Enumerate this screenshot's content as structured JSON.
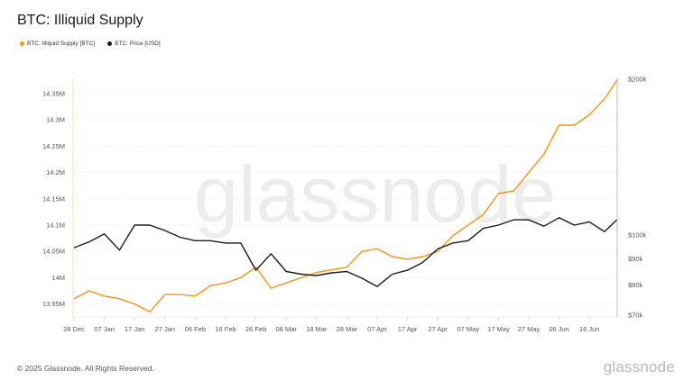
{
  "header": {
    "title": "BTC: Illiquid Supply"
  },
  "legend": [
    {
      "label": "BTC: Illiquid Supply [BTC]",
      "color": "#F7931A"
    },
    {
      "label": "BTC: Price [USD]",
      "color": "#1a1a1a"
    }
  ],
  "watermark": "glassnode",
  "footer": {
    "copyright": "© 2025 Glassnode. All Rights Reserved.",
    "brand": "glassnode"
  },
  "chart_data": {
    "type": "line",
    "title": "BTC: Illiquid Supply",
    "xlabel": "",
    "ylabel_left": "Illiquid Supply [BTC]",
    "ylabel_right": "Price [USD]",
    "x_ticks": [
      "28 Dec",
      "07 Jan",
      "17 Jan",
      "27 Jan",
      "06 Feb",
      "16 Feb",
      "26 Feb",
      "08 Mar",
      "18 Mar",
      "28 Mar",
      "07 Apr",
      "17 Apr",
      "27 Apr",
      "07 May",
      "17 May",
      "27 May",
      "06 Jun",
      "16 Jun"
    ],
    "y_left_ticks": [
      "13.95M",
      "14M",
      "14.05M",
      "14.1M",
      "14.15M",
      "14.2M",
      "14.25M",
      "14.3M",
      "14.35M"
    ],
    "y_left_range": [
      13.94,
      14.375
    ],
    "y_right_ticks": [
      "$70k",
      "$80k",
      "$90k",
      "$100k",
      "$200k"
    ],
    "y_right_scale": "log",
    "y_right_range": [
      70000,
      200000
    ],
    "grid": true,
    "legend_position": "top-left",
    "x": [
      "28 Dec",
      "02 Jan",
      "07 Jan",
      "12 Jan",
      "17 Jan",
      "22 Jan",
      "27 Jan",
      "01 Feb",
      "06 Feb",
      "11 Feb",
      "16 Feb",
      "21 Feb",
      "26 Feb",
      "03 Mar",
      "08 Mar",
      "13 Mar",
      "18 Mar",
      "23 Mar",
      "28 Mar",
      "02 Apr",
      "07 Apr",
      "12 Apr",
      "17 Apr",
      "22 Apr",
      "27 Apr",
      "02 May",
      "07 May",
      "12 May",
      "17 May",
      "22 May",
      "27 May",
      "01 Jun",
      "06 Jun",
      "11 Jun",
      "16 Jun",
      "21 Jun",
      "25 Jun"
    ],
    "series": [
      {
        "name": "BTC: Illiquid Supply [BTC]",
        "axis": "left",
        "color": "#F7931A",
        "values": [
          13.96,
          13.975,
          13.965,
          13.96,
          13.95,
          13.935,
          13.968,
          13.968,
          13.965,
          13.985,
          13.99,
          14.0,
          14.02,
          13.98,
          13.99,
          14.0,
          14.01,
          14.015,
          14.02,
          14.05,
          14.055,
          14.04,
          14.035,
          14.04,
          14.05,
          14.08,
          14.1,
          14.12,
          14.16,
          14.165,
          14.2,
          14.235,
          14.29,
          14.29,
          14.31,
          14.34,
          14.375
        ]
      },
      {
        "name": "BTC: Price [USD]",
        "axis": "right",
        "color": "#1a1a1a",
        "values": [
          94500,
          97000,
          100500,
          93500,
          104500,
          104500,
          102000,
          99000,
          97500,
          97500,
          96500,
          96500,
          85500,
          92000,
          85000,
          84000,
          83500,
          84500,
          85000,
          82500,
          79500,
          84000,
          85500,
          88500,
          94000,
          96500,
          97500,
          103000,
          104500,
          107000,
          107000,
          104000,
          108000,
          104500,
          106000,
          101500,
          107000
        ]
      }
    ]
  }
}
